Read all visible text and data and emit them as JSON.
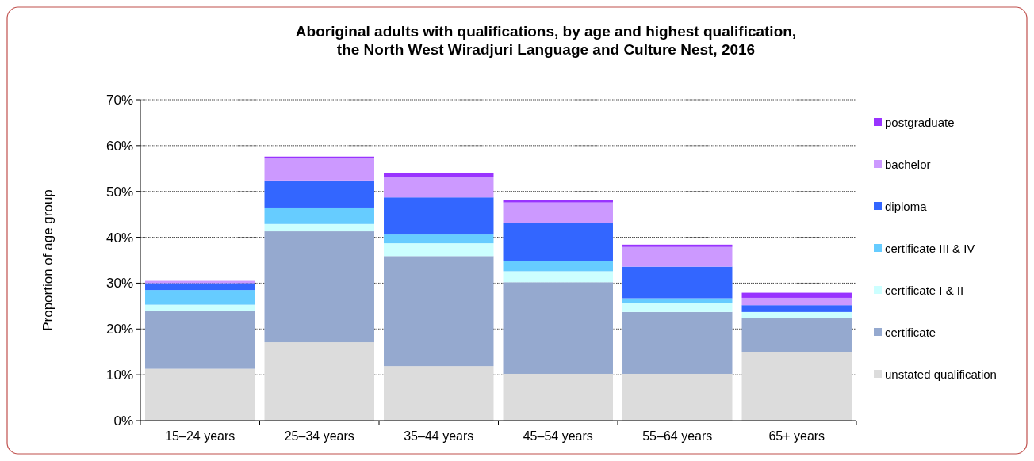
{
  "chart_data": {
    "type": "bar",
    "stacked": true,
    "title": "Aboriginal adults with qualifications, by age and highest qualification,\nthe North West Wiradjuri Language and Culture Nest, 2016",
    "ylabel": "Proportion of age group",
    "categories": [
      "15–24 years",
      "25–34 years",
      "35–44 years",
      "45–54 years",
      "55–64 years",
      "65+ years"
    ],
    "series": [
      {
        "name": "unstated qualification",
        "color": "#dcdcdc",
        "values": [
          11.3,
          17.1,
          11.9,
          10.2,
          10.2,
          15.0
        ]
      },
      {
        "name": "certificate",
        "color": "#95a9cf",
        "values": [
          12.7,
          24.2,
          24.0,
          20.0,
          13.5,
          7.4
        ]
      },
      {
        "name": "certificate I & II",
        "color": "#ccffff",
        "values": [
          1.3,
          1.6,
          2.8,
          2.4,
          1.9,
          1.3
        ]
      },
      {
        "name": "certificate III & IV",
        "color": "#66ccff",
        "values": [
          3.2,
          3.6,
          1.9,
          2.3,
          1.1,
          0
        ]
      },
      {
        "name": "diploma",
        "color": "#3366ff",
        "values": [
          1.5,
          5.9,
          8.1,
          8.2,
          6.9,
          1.5
        ]
      },
      {
        "name": "bachelor",
        "color": "#cc99ff",
        "values": [
          0.5,
          4.8,
          4.5,
          4.5,
          4.3,
          1.6
        ]
      },
      {
        "name": "postgraduate",
        "color": "#9933ff",
        "values": [
          0,
          0.4,
          0.9,
          0.5,
          0.5,
          1.1
        ]
      }
    ],
    "ylim": [
      0,
      70
    ],
    "yticks": [
      {
        "value": 0,
        "label": "0%"
      },
      {
        "value": 10,
        "label": "10%"
      },
      {
        "value": 20,
        "label": "20%"
      },
      {
        "value": 30,
        "label": "30%"
      },
      {
        "value": 40,
        "label": "40%"
      },
      {
        "value": 50,
        "label": "50%"
      },
      {
        "value": 60,
        "label": "60%"
      },
      {
        "value": 70,
        "label": "70%"
      }
    ],
    "grid": "y",
    "legend": "right"
  }
}
